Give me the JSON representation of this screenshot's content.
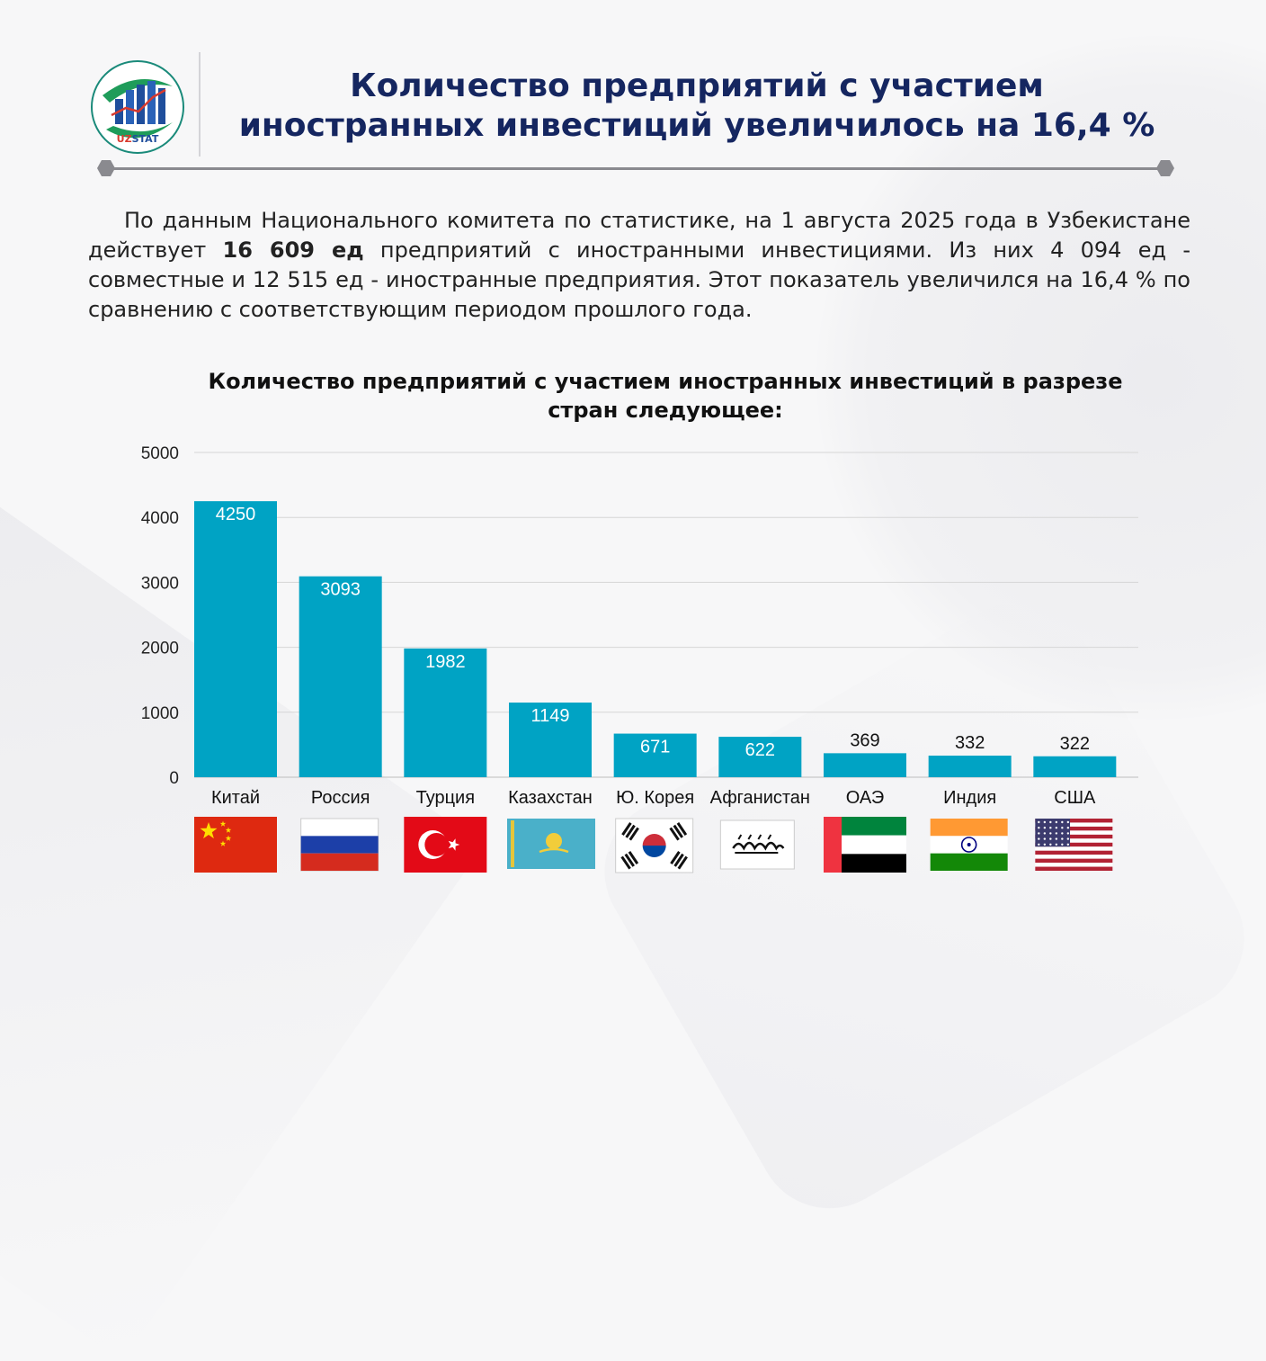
{
  "header": {
    "logo_text": "UZSTAT",
    "title_line1": "Количество предприятий с участием",
    "title_line2": "иностранных инвестиций увеличилось на 16,4 %"
  },
  "paragraph": {
    "p1": "По данным Национального комитета по статистике, на 1 августа 2025 года в Узбекистане действует ",
    "bold": "16 609 ед",
    "p2": " предприятий с иностранными инвестициями. Из них 4 094 ед - совместные и 12 515 ед - иностранные предприятия. Этот показатель увеличился на 16,4 % по сравнению с соответствующим периодом прошлого года."
  },
  "chart_data": {
    "type": "bar",
    "title_line1": "Количество предприятий с участием иностранных инвестиций в разрезе",
    "title_line2": "стран следующее:",
    "categories": [
      "Китай",
      "Россия",
      "Турция",
      "Казахстан",
      "Ю. Корея",
      "Афганистан",
      "ОАЭ",
      "Индия",
      "США"
    ],
    "values": [
      4250,
      3093,
      1982,
      1149,
      671,
      622,
      369,
      332,
      322
    ],
    "yticks": [
      0,
      1000,
      2000,
      3000,
      4000,
      5000
    ],
    "ylim": [
      0,
      5000
    ],
    "bar_color": "#00a3c4",
    "grid": true,
    "flags": [
      "flag-china",
      "flag-russia",
      "flag-turkey",
      "flag-kazakhstan",
      "flag-south-korea",
      "flag-afghanistan",
      "flag-uae",
      "flag-india",
      "flag-usa"
    ]
  }
}
